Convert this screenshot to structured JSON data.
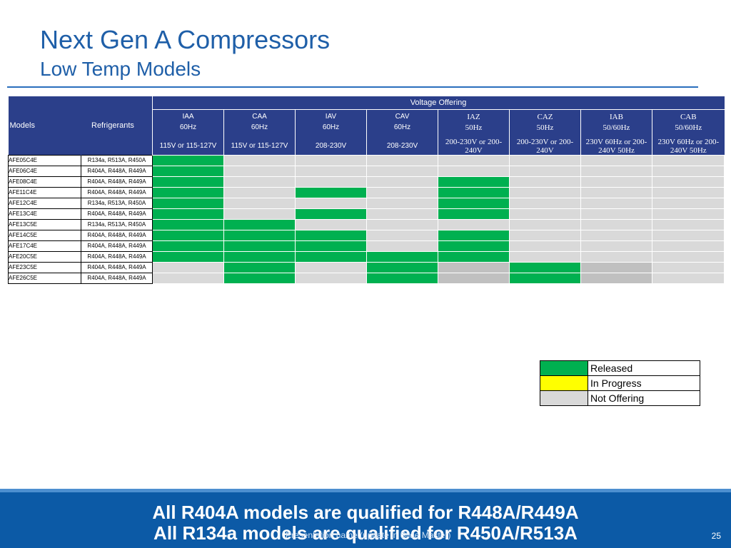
{
  "slide": {
    "title": "Next Gen A Compressors",
    "subtitle": "Low Temp Models",
    "footer_text": "Presentation name (update in Slide Master)",
    "page_number": "25"
  },
  "table": {
    "header": {
      "models": "Models",
      "refrigerants": "Refrigerants",
      "voltage_offering": "Voltage Offering"
    },
    "columns": [
      {
        "code": "IAA",
        "freq": "60Hz",
        "voltage": "115V or 115-127V"
      },
      {
        "code": "CAA",
        "freq": "60Hz",
        "voltage": "115V or 115-127V"
      },
      {
        "code": "IAV",
        "freq": "60Hz",
        "voltage": "208-230V"
      },
      {
        "code": "CAV",
        "freq": "60Hz",
        "voltage": "208-230V"
      },
      {
        "code": "IAZ",
        "freq": "50Hz",
        "voltage": "200-230V or 200-240V"
      },
      {
        "code": "CAZ",
        "freq": "50Hz",
        "voltage": "200-230V or 200-240V"
      },
      {
        "code": "IAB",
        "freq": "50/60Hz",
        "voltage": "230V 60Hz or 200-240V 50Hz"
      },
      {
        "code": "CAB",
        "freq": "50/60Hz",
        "voltage": "230V 60Hz or 200-240V 50Hz"
      }
    ],
    "rows": [
      {
        "model": "AFE05C4E",
        "refrigerants": "R134a, R513A, R450A",
        "status": [
          "released",
          "not-offering",
          "not-offering",
          "not-offering",
          "not-offering",
          "not-offering",
          "not-offering",
          "not-offering"
        ]
      },
      {
        "model": "AFE06C4E",
        "refrigerants": "R404A, R448A, R449A",
        "status": [
          "released",
          "not-offering",
          "not-offering",
          "not-offering",
          "not-offering",
          "not-offering",
          "not-offering",
          "not-offering"
        ]
      },
      {
        "model": "AFE08C4E",
        "refrigerants": "R404A, R448A, R449A",
        "status": [
          "released",
          "not-offering",
          "not-offering",
          "not-offering",
          "released",
          "not-offering",
          "not-offering",
          "not-offering"
        ]
      },
      {
        "model": "AFE11C4E",
        "refrigerants": "R404A, R448A, R449A",
        "status": [
          "released",
          "not-offering",
          "released",
          "not-offering",
          "released",
          "not-offering",
          "not-offering",
          "not-offering"
        ]
      },
      {
        "model": "AFE12C4E",
        "refrigerants": "R134a, R513A, R450A",
        "status": [
          "released",
          "not-offering",
          "not-offering",
          "not-offering",
          "released",
          "not-offering",
          "not-offering",
          "not-offering"
        ]
      },
      {
        "model": "AFE13C4E",
        "refrigerants": "R404A, R448A, R449A",
        "status": [
          "released",
          "not-offering",
          "released",
          "not-offering",
          "released",
          "not-offering",
          "not-offering",
          "not-offering"
        ]
      },
      {
        "model": "AFE13C5E",
        "refrigerants": "R134a, R513A, R450A",
        "status": [
          "released",
          "released",
          "not-offering",
          "not-offering",
          "not-offering",
          "not-offering",
          "not-offering",
          "not-offering"
        ]
      },
      {
        "model": "AFE14C5E",
        "refrigerants": "R404A, R448A, R449A",
        "status": [
          "released",
          "released",
          "released",
          "not-offering",
          "released",
          "not-offering",
          "not-offering",
          "not-offering"
        ]
      },
      {
        "model": "AFE17C4E",
        "refrigerants": "R404A, R448A, R449A",
        "status": [
          "released",
          "released",
          "released",
          "not-offering",
          "released",
          "not-offering",
          "not-offering",
          "not-offering"
        ]
      },
      {
        "model": "AFE20C5E",
        "refrigerants": "R404A, R448A, R449A",
        "status": [
          "released",
          "released",
          "released",
          "released",
          "released",
          "not-offering",
          "not-offering",
          "not-offering"
        ]
      },
      {
        "model": "AFE23C5E",
        "refrigerants": "R404A, R448A, R449A",
        "status": [
          "not-offering",
          "released",
          "not-offering",
          "released",
          "not-offering-dark",
          "released",
          "not-offering-dark",
          "not-offering"
        ]
      },
      {
        "model": "AFE26C5E",
        "refrigerants": "R404A, R448A, R449A",
        "status": [
          "not-offering",
          "released",
          "not-offering",
          "released",
          "not-offering-dark",
          "released",
          "not-offering-dark",
          "not-offering"
        ]
      }
    ]
  },
  "legend": [
    {
      "label": "Released",
      "color": "#00b050"
    },
    {
      "label": "In Progress",
      "color": "#ffff00"
    },
    {
      "label": "Not Offering",
      "color": "#d9d9d9"
    }
  ],
  "banner": {
    "line1": "All R404A models are qualified for R448A/R449A",
    "line2": "All R134a models are qualified for R450A/R513A"
  }
}
